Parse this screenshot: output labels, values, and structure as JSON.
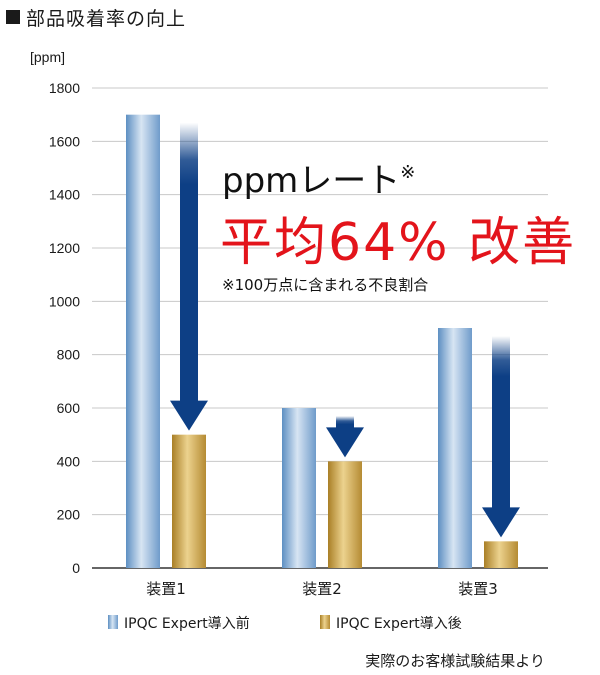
{
  "heading": "部品吸着率の向上",
  "chart_data": {
    "type": "bar",
    "unit_label": "[ppm]",
    "categories": [
      "装置1",
      "装置2",
      "装置3"
    ],
    "ylim": [
      0,
      1800
    ],
    "yticks": [
      0,
      200,
      400,
      600,
      800,
      1000,
      1200,
      1400,
      1600,
      1800
    ],
    "grid": true,
    "series": [
      {
        "name": "IPQC Expert導入前",
        "values": [
          1700,
          600,
          900
        ]
      },
      {
        "name": "IPQC Expert導入後",
        "values": [
          500,
          400,
          100
        ]
      }
    ],
    "legend_position": "bottom",
    "annotations": {
      "line1": "ppmレート",
      "line1_mark": "※",
      "line2": "平均64% 改善",
      "line3": "※100万点に含まれる不良割合"
    }
  },
  "source_note": "実際のお客様試験結果より",
  "colors": {
    "before_bar": "#8fb2d6",
    "after_bar": "#c9a04a",
    "arrow": "#0d3f85",
    "highlight_text": "#e3141b"
  }
}
